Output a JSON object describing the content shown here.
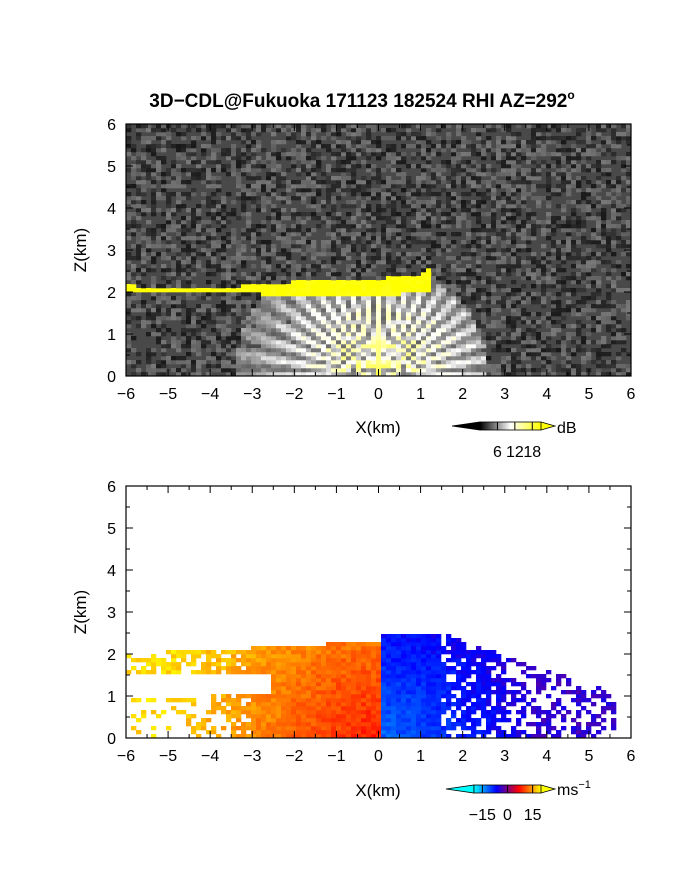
{
  "figure": {
    "title": "3D−CDL@Fukuoka 171123 182524 RHI AZ=292",
    "title_sup": "o"
  },
  "chart_data": [
    {
      "type": "heatmap",
      "panel": "backscatter-intensity",
      "xlabel": "X(km)",
      "ylabel": "Z(km)",
      "xlim": [
        -6,
        6
      ],
      "ylim": [
        0,
        6
      ],
      "x_ticks": [
        "−6",
        "−5",
        "−4",
        "−3",
        "−2",
        "−1",
        "0",
        "1",
        "2",
        "3",
        "4",
        "5",
        "6"
      ],
      "y_ticks": [
        "0",
        "1",
        "2",
        "3",
        "4",
        "5",
        "6"
      ],
      "colorbar": {
        "unit": "dB",
        "ticks": [
          "6",
          "12",
          "18"
        ],
        "range": [
          0,
          21
        ],
        "colors": [
          "#000000",
          "#ffffff",
          "#ffff00"
        ]
      },
      "features": {
        "noise_background_dB": 3,
        "cloud_layer_top": {
          "x": [
            -6,
            -5,
            -4,
            -3,
            -2.5,
            -2,
            -1.5,
            -1,
            -0.5,
            0,
            0.5,
            1,
            1.2
          ],
          "z_base": [
            1.98,
            1.98,
            1.96,
            1.98,
            1.92,
            1.88,
            1.86,
            1.92,
            1.92,
            1.95,
            1.95,
            2.0,
            2.05
          ],
          "z_top": [
            2.15,
            2.12,
            2.1,
            2.16,
            2.2,
            2.25,
            2.25,
            2.28,
            2.3,
            2.32,
            2.35,
            2.4,
            2.55
          ],
          "intensity_dB": 20
        },
        "scan_origin_x": 0,
        "radial_fan_dB": 14
      }
    },
    {
      "type": "heatmap",
      "panel": "radial-velocity",
      "xlabel": "X(km)",
      "ylabel": "Z(km)",
      "xlim": [
        -6,
        6
      ],
      "ylim": [
        0,
        6
      ],
      "x_ticks": [
        "−6",
        "−5",
        "−4",
        "−3",
        "−2",
        "−1",
        "0",
        "1",
        "2",
        "3",
        "4",
        "5",
        "6"
      ],
      "y_ticks": [
        "0",
        "1",
        "2",
        "3",
        "4",
        "5",
        "6"
      ],
      "colorbar": {
        "unit": "ms",
        "unit_sup": "−1",
        "ticks": [
          "−15",
          "0",
          "15"
        ],
        "range": [
          -20,
          20
        ],
        "colors": [
          "#00ffff",
          "#0000ff",
          "#ff0000",
          "#ffff00"
        ]
      },
      "features": {
        "divide_x": 0.1,
        "velocity_left_near_ms": 8,
        "velocity_left_far_ms": 18,
        "velocity_right_near_ms": -12,
        "velocity_right_far_ms": -4,
        "echo_top_left_km": 2.3,
        "echo_top_right_km": 2.5,
        "echo_reach_right_km": 5.6
      }
    }
  ]
}
